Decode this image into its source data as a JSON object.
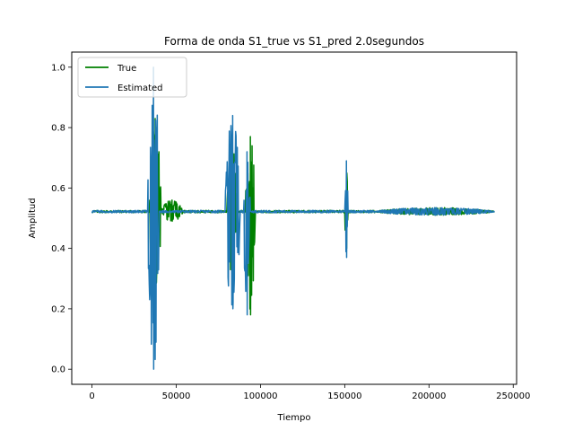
{
  "chart_data": {
    "type": "line",
    "title": "Forma de onda S1_true vs S1_pred 2.0segundos",
    "xlabel": "Tiempo",
    "ylabel": "Amplitud",
    "xlim": [
      -12000,
      252000
    ],
    "ylim": [
      -0.05,
      1.05
    ],
    "xticks": [
      0,
      50000,
      100000,
      150000,
      200000,
      250000
    ],
    "xtick_labels": [
      "0",
      "50000",
      "100000",
      "150000",
      "200000",
      "250000"
    ],
    "yticks": [
      0.0,
      0.2,
      0.4,
      0.6,
      0.8,
      1.0
    ],
    "ytick_labels": [
      "0.0",
      "0.2",
      "0.4",
      "0.6",
      "0.8",
      "1.0"
    ],
    "grid": false,
    "legend_position": "upper-left",
    "baseline": 0.522,
    "series": [
      {
        "name": "True",
        "color": "#008000",
        "x_range": [
          0,
          239000
        ],
        "bursts": [
          {
            "x_start": 34000,
            "x_end": 41000,
            "min": 0.22,
            "max": 0.83
          },
          {
            "x_start": 41000,
            "x_end": 54000,
            "min": 0.49,
            "max": 0.56
          },
          {
            "x_start": 80000,
            "x_end": 86000,
            "min": 0.28,
            "max": 0.75
          },
          {
            "x_start": 91000,
            "x_end": 97000,
            "min": 0.18,
            "max": 0.77
          },
          {
            "x_start": 150000,
            "x_end": 152000,
            "min": 0.4,
            "max": 0.66
          },
          {
            "x_start": 168000,
            "x_end": 239000,
            "min": 0.51,
            "max": 0.535
          }
        ]
      },
      {
        "name": "Estimated",
        "color": "#1f77b4",
        "x_range": [
          0,
          239000
        ],
        "bursts": [
          {
            "x_start": 33000,
            "x_end": 40000,
            "min": 0.0,
            "max": 1.0
          },
          {
            "x_start": 79000,
            "x_end": 88000,
            "min": 0.2,
            "max": 0.84
          },
          {
            "x_start": 90000,
            "x_end": 94000,
            "min": 0.18,
            "max": 0.72
          },
          {
            "x_start": 150000,
            "x_end": 152000,
            "min": 0.37,
            "max": 0.69
          },
          {
            "x_start": 168000,
            "x_end": 239000,
            "min": 0.51,
            "max": 0.535
          }
        ]
      }
    ]
  }
}
